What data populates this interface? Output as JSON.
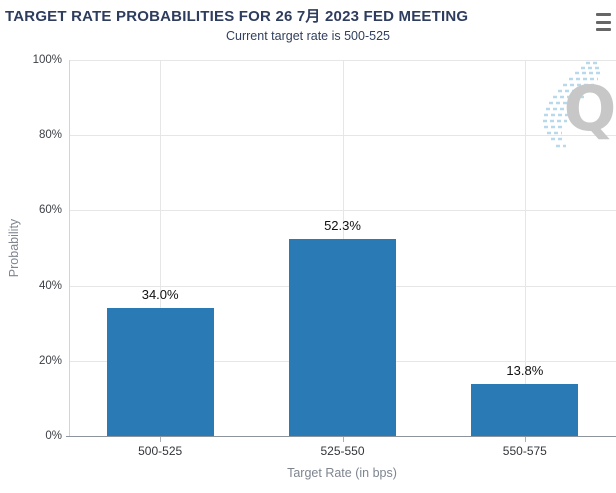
{
  "header": {
    "title": "TARGET RATE PROBABILITIES FOR 26 7月 2023 FED MEETING",
    "subtitle": "Current target rate is 500-525"
  },
  "icons": {
    "context_menu": "hamburger-menu-icon",
    "watermark": "quikstrike-q-watermark"
  },
  "watermark": {
    "letter": "Q"
  },
  "chart_data": {
    "type": "bar",
    "title": "TARGET RATE PROBABILITIES FOR 26 7月 2023 FED MEETING",
    "subtitle": "Current target rate is 500-525",
    "categories": [
      "500-525",
      "525-550",
      "550-575"
    ],
    "values": [
      34.0,
      52.3,
      13.8
    ],
    "value_labels": [
      "34.0%",
      "52.3%",
      "13.8%"
    ],
    "xlabel": "Target Rate (in bps)",
    "ylabel": "Probability",
    "ylim": [
      0,
      100
    ],
    "ytick_values": [
      0,
      20,
      40,
      60,
      80,
      100
    ],
    "ytick_labels": [
      "0%",
      "20%",
      "40%",
      "60%",
      "80%",
      "100%"
    ],
    "grid": true,
    "legend_position": "none",
    "bar_color": "#2a7ab6"
  },
  "colors": {
    "bar": "#2a7ab6",
    "title": "#2e3c5e",
    "subtitle": "#32405e",
    "axis_title": "#7e858f",
    "tick_label": "#3d4046",
    "grid": "#e6e6e6",
    "axis_line": "#8d949c",
    "menu_icon": "#666666",
    "watermark_gray": "#c7c7c7",
    "watermark_blue": "#b5d8ea"
  }
}
